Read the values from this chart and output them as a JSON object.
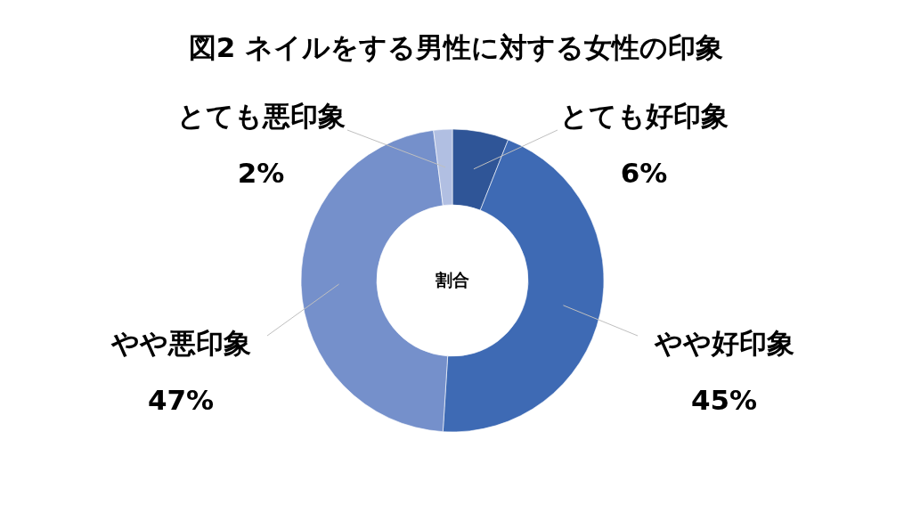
{
  "chart_data": {
    "type": "donut",
    "title": "図2 ネイルをする男性に対する女性の印象",
    "categories": [
      "とても好印象",
      "やや好印象",
      "やや悪印象",
      "とても悪印象"
    ],
    "values": [
      6,
      45,
      47,
      2
    ],
    "colors": [
      "#2f5597",
      "#3e6ab4",
      "#7590cb",
      "#b1bfe2"
    ],
    "value_labels": [
      "6%",
      "45%",
      "47%",
      "2%"
    ],
    "annotations": [
      "割合"
    ]
  }
}
